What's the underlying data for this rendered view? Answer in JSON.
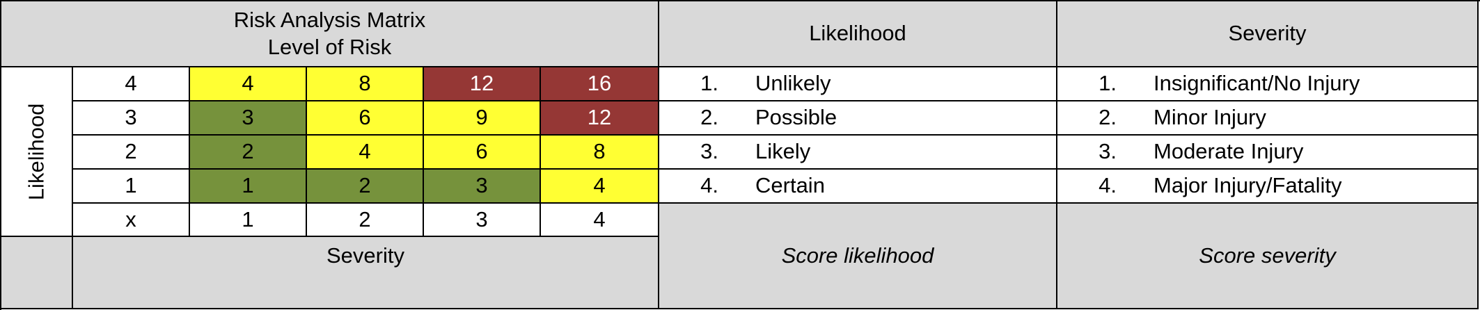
{
  "matrix": {
    "title_line1": "Risk Analysis Matrix",
    "title_line2": "Level of Risk",
    "likelihood_axis_label": "Likelihood",
    "severity_axis_label": "Severity",
    "corner_label": "x",
    "rows": [
      {
        "likelihood": "4",
        "cells": [
          {
            "value": "4",
            "level": "yellow"
          },
          {
            "value": "8",
            "level": "yellow"
          },
          {
            "value": "12",
            "level": "red"
          },
          {
            "value": "16",
            "level": "red"
          }
        ]
      },
      {
        "likelihood": "3",
        "cells": [
          {
            "value": "3",
            "level": "green"
          },
          {
            "value": "6",
            "level": "yellow"
          },
          {
            "value": "9",
            "level": "yellow"
          },
          {
            "value": "12",
            "level": "red"
          }
        ]
      },
      {
        "likelihood": "2",
        "cells": [
          {
            "value": "2",
            "level": "green"
          },
          {
            "value": "4",
            "level": "yellow"
          },
          {
            "value": "6",
            "level": "yellow"
          },
          {
            "value": "8",
            "level": "yellow"
          }
        ]
      },
      {
        "likelihood": "1",
        "cells": [
          {
            "value": "1",
            "level": "green"
          },
          {
            "value": "2",
            "level": "green"
          },
          {
            "value": "3",
            "level": "green"
          },
          {
            "value": "4",
            "level": "yellow"
          }
        ]
      }
    ],
    "severity_values": [
      "1",
      "2",
      "3",
      "4"
    ],
    "colors": {
      "green": "#76923c",
      "yellow": "#ffff33",
      "red": "#953735",
      "header_gray": "#d9d9d9"
    }
  },
  "likelihood_table": {
    "header": "Likelihood",
    "items": [
      {
        "num": "1.",
        "label": "Unlikely"
      },
      {
        "num": "2.",
        "label": "Possible"
      },
      {
        "num": "3.",
        "label": "Likely"
      },
      {
        "num": "4.",
        "label": "Certain"
      }
    ],
    "footer": "Score likelihood"
  },
  "severity_table": {
    "header": "Severity",
    "items": [
      {
        "num": "1.",
        "label": "Insignificant/No Injury"
      },
      {
        "num": "2.",
        "label": "Minor Injury"
      },
      {
        "num": "3.",
        "label": "Moderate Injury"
      },
      {
        "num": "4.",
        "label": "Major Injury/Fatality"
      }
    ],
    "footer": "Score severity"
  }
}
